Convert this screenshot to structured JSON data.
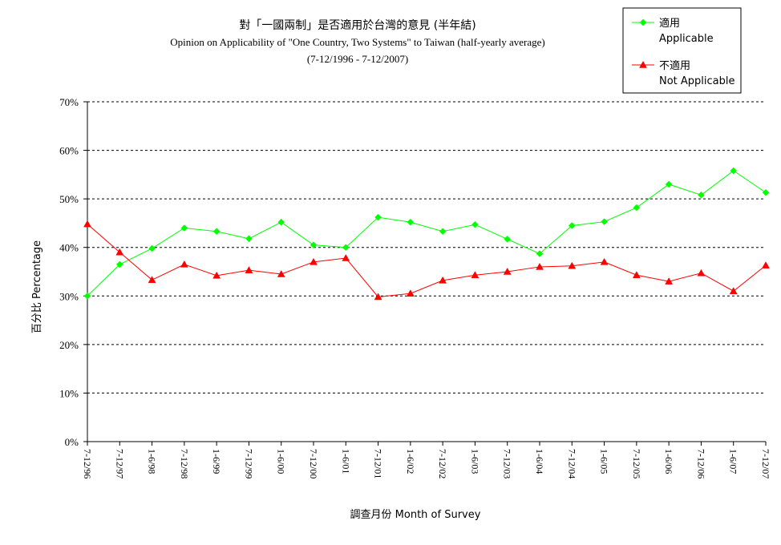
{
  "chart_data": {
    "type": "line",
    "title": "對「一國兩制」是否適用於台灣的意見 (半年結)",
    "subtitle": "Opinion on Applicability of \"One Country, Two Systems\" to Taiwan (half-yearly average)",
    "subtitle2": "(7-12/1996 - 7-12/2007)",
    "xlabel": "調查月份 Month of Survey",
    "ylabel": "百分比 Percentage",
    "ylim": [
      0,
      70
    ],
    "yticks": [
      "0%",
      "10%",
      "20%",
      "30%",
      "40%",
      "50%",
      "60%",
      "70%"
    ],
    "grid": true,
    "legend_position": "top-right",
    "categories": [
      "7-12/96",
      "7-12/97",
      "1-6/98",
      "7-12/98",
      "1-6/99",
      "7-12/99",
      "1-6/00",
      "7-12/00",
      "1-6/01",
      "7-12/01",
      "1-6/02",
      "7-12/02",
      "1-6/03",
      "7-12/03",
      "1-6/04",
      "7-12/04",
      "1-6/05",
      "7-12/05",
      "1-6/06",
      "7-12/06",
      "1-6/07",
      "7-12/07"
    ],
    "series": [
      {
        "name": "適用",
        "name_en": "Applicable",
        "color": "#00ff00",
        "marker": "diamond",
        "values": [
          30.0,
          36.5,
          39.8,
          44.0,
          43.3,
          41.8,
          45.2,
          40.5,
          40.0,
          46.2,
          45.2,
          43.3,
          44.7,
          41.7,
          38.7,
          44.5,
          45.3,
          48.2,
          53.0,
          50.8,
          55.8,
          51.3
        ]
      },
      {
        "name": "不適用",
        "name_en": "Not Applicable",
        "color": "#ff0000",
        "marker": "triangle",
        "values": [
          44.8,
          39.0,
          33.3,
          36.5,
          34.2,
          35.3,
          34.5,
          37.0,
          37.8,
          29.8,
          30.5,
          33.2,
          34.3,
          35.0,
          36.0,
          36.2,
          37.0,
          34.3,
          33.0,
          34.7,
          31.0,
          36.3
        ]
      }
    ]
  }
}
